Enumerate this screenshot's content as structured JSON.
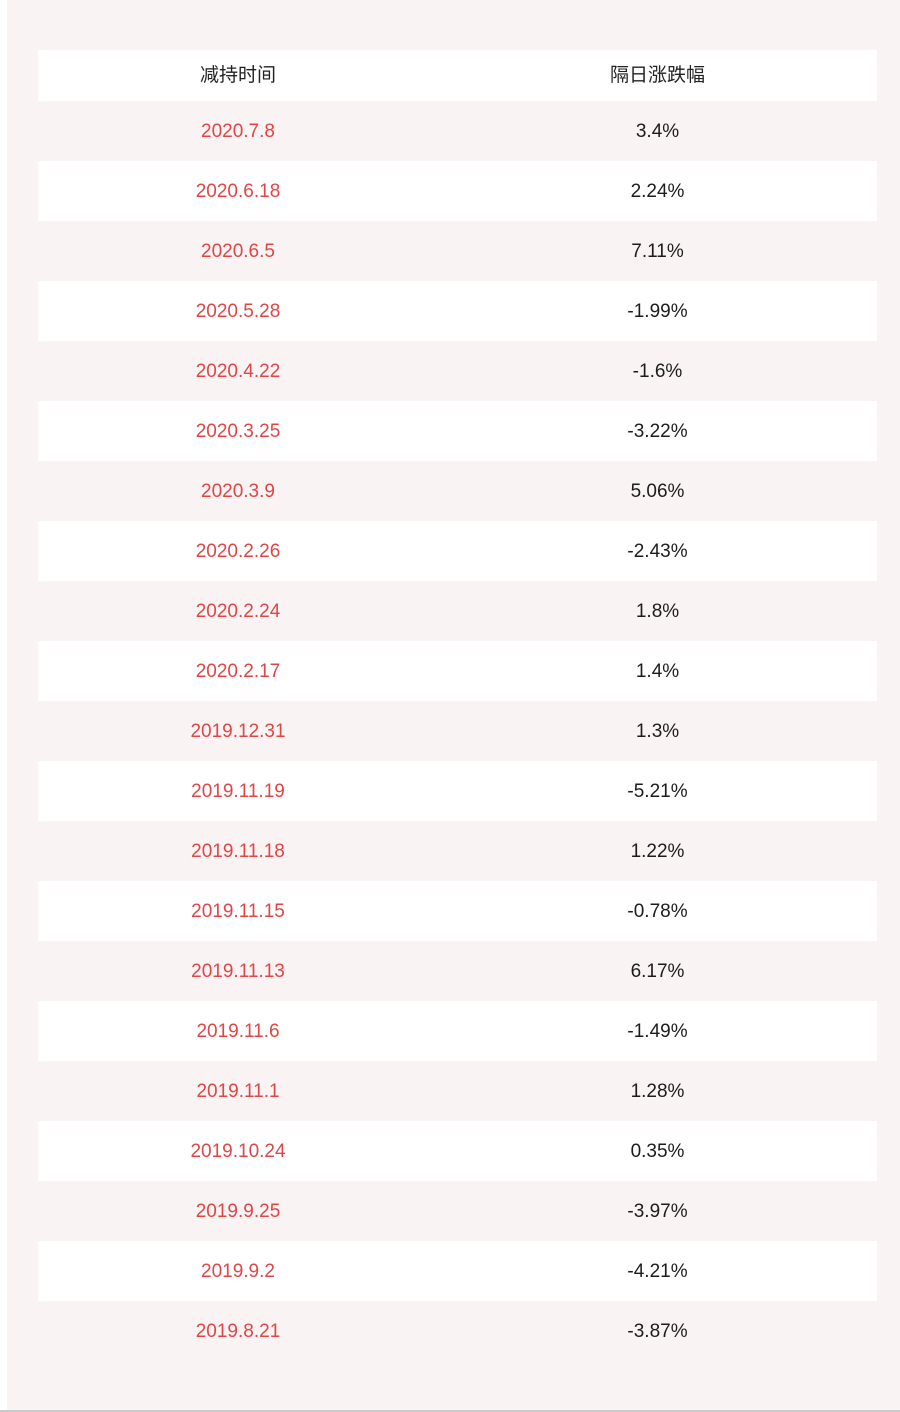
{
  "page": {
    "background_color": "#faf3f4",
    "white_row_color": "#ffffff",
    "date_text_color": "#e04646",
    "change_text_color": "#1c1c1c",
    "bottom_divider_color": "#c9c9c9"
  },
  "table": {
    "columns": [
      "减持时间",
      "隔日涨跌幅"
    ]
  },
  "chart_data": {
    "type": "table",
    "title": "",
    "columns": [
      "减持时间",
      "隔日涨跌幅"
    ],
    "rows": [
      {
        "date": "2020.7.8",
        "change": "3.4%"
      },
      {
        "date": "2020.6.18",
        "change": "2.24%"
      },
      {
        "date": "2020.6.5",
        "change": "7.11%"
      },
      {
        "date": "2020.5.28",
        "change": "-1.99%"
      },
      {
        "date": "2020.4.22",
        "change": "-1.6%"
      },
      {
        "date": "2020.3.25",
        "change": "-3.22%"
      },
      {
        "date": "2020.3.9",
        "change": "5.06%"
      },
      {
        "date": "2020.2.26",
        "change": "-2.43%"
      },
      {
        "date": "2020.2.24",
        "change": "1.8%"
      },
      {
        "date": "2020.2.17",
        "change": "1.4%"
      },
      {
        "date": "2019.12.31",
        "change": "1.3%"
      },
      {
        "date": "2019.11.19",
        "change": "-5.21%"
      },
      {
        "date": "2019.11.18",
        "change": "1.22%"
      },
      {
        "date": "2019.11.15",
        "change": "-0.78%"
      },
      {
        "date": "2019.11.13",
        "change": "6.17%"
      },
      {
        "date": "2019.11.6",
        "change": "-1.49%"
      },
      {
        "date": "2019.11.1",
        "change": "1.28%"
      },
      {
        "date": "2019.10.24",
        "change": "0.35%"
      },
      {
        "date": "2019.9.25",
        "change": "-3.97%"
      },
      {
        "date": "2019.9.2",
        "change": "-4.21%"
      },
      {
        "date": "2019.8.21",
        "change": "-3.87%"
      }
    ],
    "values_numeric": [
      3.4,
      2.24,
      7.11,
      -1.99,
      -1.6,
      -3.22,
      5.06,
      -2.43,
      1.8,
      1.4,
      1.3,
      -5.21,
      1.22,
      -0.78,
      6.17,
      -1.49,
      1.28,
      0.35,
      -3.97,
      -4.21,
      -3.87
    ],
    "layout_hints": {
      "striping": "odd data rows share page background, even data rows white",
      "header_background": "#ffffff"
    }
  }
}
